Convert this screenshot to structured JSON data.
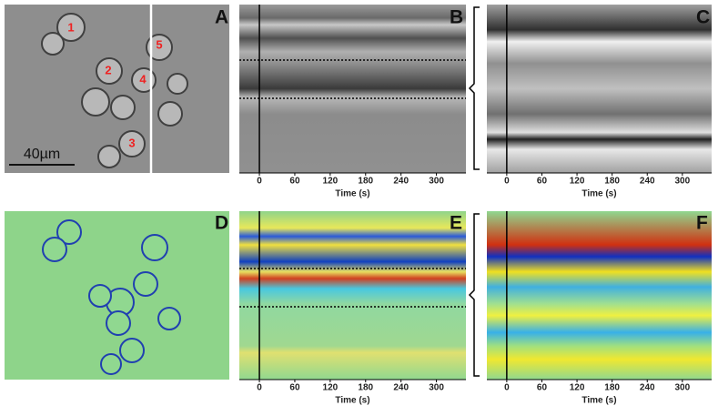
{
  "panel_labels": [
    "A",
    "B",
    "C",
    "D",
    "E",
    "F"
  ],
  "scale_bar": "40µm",
  "cell_labels": [
    "1",
    "2",
    "3",
    "4",
    "5"
  ],
  "x_axis": {
    "label": "Time (s)",
    "ticks": [
      0,
      60,
      120,
      180,
      240,
      300
    ],
    "xlim": [
      -34,
      350
    ]
  }
}
